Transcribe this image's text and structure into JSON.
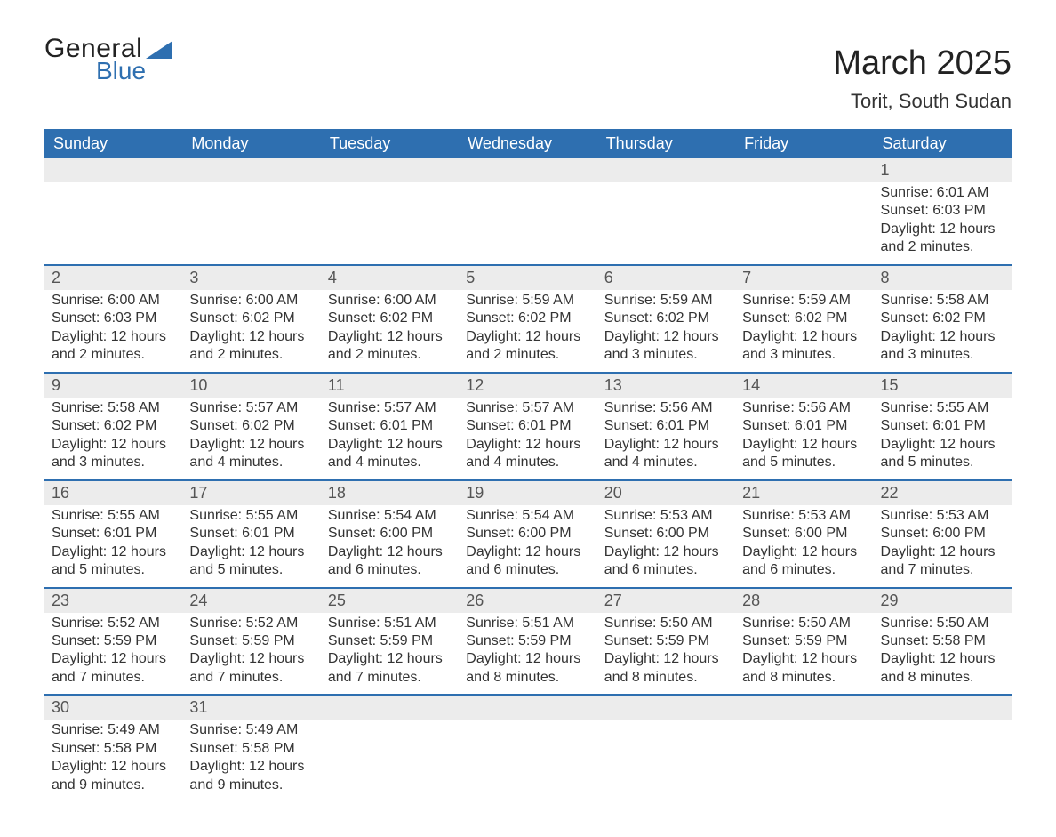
{
  "logo": {
    "text_general": "General",
    "text_blue": "Blue",
    "tri_color": "#2e6fb0"
  },
  "title": "March 2025",
  "location": "Torit, South Sudan",
  "header_bg": "#2e6fb0",
  "header_text_color": "#ffffff",
  "daynum_bg": "#ececec",
  "row_sep_color": "#2e6fb0",
  "text_color": "#333333",
  "day_headers": [
    "Sunday",
    "Monday",
    "Tuesday",
    "Wednesday",
    "Thursday",
    "Friday",
    "Saturday"
  ],
  "weeks": [
    [
      null,
      null,
      null,
      null,
      null,
      null,
      {
        "n": "1",
        "sunrise": "6:01 AM",
        "sunset": "6:03 PM",
        "daylight": "12 hours and 2 minutes."
      }
    ],
    [
      {
        "n": "2",
        "sunrise": "6:00 AM",
        "sunset": "6:03 PM",
        "daylight": "12 hours and 2 minutes."
      },
      {
        "n": "3",
        "sunrise": "6:00 AM",
        "sunset": "6:02 PM",
        "daylight": "12 hours and 2 minutes."
      },
      {
        "n": "4",
        "sunrise": "6:00 AM",
        "sunset": "6:02 PM",
        "daylight": "12 hours and 2 minutes."
      },
      {
        "n": "5",
        "sunrise": "5:59 AM",
        "sunset": "6:02 PM",
        "daylight": "12 hours and 2 minutes."
      },
      {
        "n": "6",
        "sunrise": "5:59 AM",
        "sunset": "6:02 PM",
        "daylight": "12 hours and 3 minutes."
      },
      {
        "n": "7",
        "sunrise": "5:59 AM",
        "sunset": "6:02 PM",
        "daylight": "12 hours and 3 minutes."
      },
      {
        "n": "8",
        "sunrise": "5:58 AM",
        "sunset": "6:02 PM",
        "daylight": "12 hours and 3 minutes."
      }
    ],
    [
      {
        "n": "9",
        "sunrise": "5:58 AM",
        "sunset": "6:02 PM",
        "daylight": "12 hours and 3 minutes."
      },
      {
        "n": "10",
        "sunrise": "5:57 AM",
        "sunset": "6:02 PM",
        "daylight": "12 hours and 4 minutes."
      },
      {
        "n": "11",
        "sunrise": "5:57 AM",
        "sunset": "6:01 PM",
        "daylight": "12 hours and 4 minutes."
      },
      {
        "n": "12",
        "sunrise": "5:57 AM",
        "sunset": "6:01 PM",
        "daylight": "12 hours and 4 minutes."
      },
      {
        "n": "13",
        "sunrise": "5:56 AM",
        "sunset": "6:01 PM",
        "daylight": "12 hours and 4 minutes."
      },
      {
        "n": "14",
        "sunrise": "5:56 AM",
        "sunset": "6:01 PM",
        "daylight": "12 hours and 5 minutes."
      },
      {
        "n": "15",
        "sunrise": "5:55 AM",
        "sunset": "6:01 PM",
        "daylight": "12 hours and 5 minutes."
      }
    ],
    [
      {
        "n": "16",
        "sunrise": "5:55 AM",
        "sunset": "6:01 PM",
        "daylight": "12 hours and 5 minutes."
      },
      {
        "n": "17",
        "sunrise": "5:55 AM",
        "sunset": "6:01 PM",
        "daylight": "12 hours and 5 minutes."
      },
      {
        "n": "18",
        "sunrise": "5:54 AM",
        "sunset": "6:00 PM",
        "daylight": "12 hours and 6 minutes."
      },
      {
        "n": "19",
        "sunrise": "5:54 AM",
        "sunset": "6:00 PM",
        "daylight": "12 hours and 6 minutes."
      },
      {
        "n": "20",
        "sunrise": "5:53 AM",
        "sunset": "6:00 PM",
        "daylight": "12 hours and 6 minutes."
      },
      {
        "n": "21",
        "sunrise": "5:53 AM",
        "sunset": "6:00 PM",
        "daylight": "12 hours and 6 minutes."
      },
      {
        "n": "22",
        "sunrise": "5:53 AM",
        "sunset": "6:00 PM",
        "daylight": "12 hours and 7 minutes."
      }
    ],
    [
      {
        "n": "23",
        "sunrise": "5:52 AM",
        "sunset": "5:59 PM",
        "daylight": "12 hours and 7 minutes."
      },
      {
        "n": "24",
        "sunrise": "5:52 AM",
        "sunset": "5:59 PM",
        "daylight": "12 hours and 7 minutes."
      },
      {
        "n": "25",
        "sunrise": "5:51 AM",
        "sunset": "5:59 PM",
        "daylight": "12 hours and 7 minutes."
      },
      {
        "n": "26",
        "sunrise": "5:51 AM",
        "sunset": "5:59 PM",
        "daylight": "12 hours and 8 minutes."
      },
      {
        "n": "27",
        "sunrise": "5:50 AM",
        "sunset": "5:59 PM",
        "daylight": "12 hours and 8 minutes."
      },
      {
        "n": "28",
        "sunrise": "5:50 AM",
        "sunset": "5:59 PM",
        "daylight": "12 hours and 8 minutes."
      },
      {
        "n": "29",
        "sunrise": "5:50 AM",
        "sunset": "5:58 PM",
        "daylight": "12 hours and 8 minutes."
      }
    ],
    [
      {
        "n": "30",
        "sunrise": "5:49 AM",
        "sunset": "5:58 PM",
        "daylight": "12 hours and 9 minutes."
      },
      {
        "n": "31",
        "sunrise": "5:49 AM",
        "sunset": "5:58 PM",
        "daylight": "12 hours and 9 minutes."
      },
      null,
      null,
      null,
      null,
      null
    ]
  ]
}
